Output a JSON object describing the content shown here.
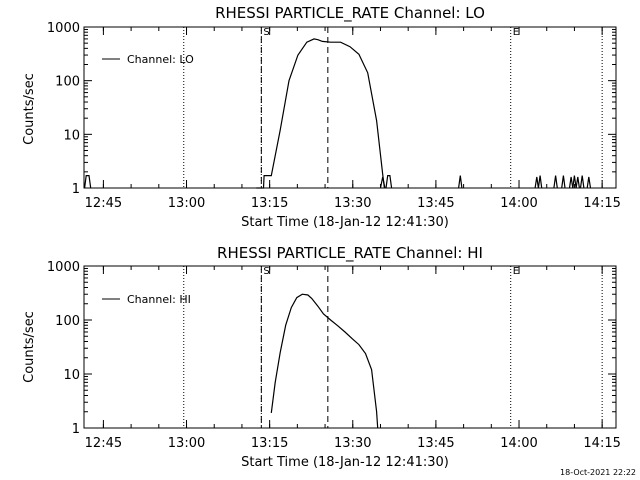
{
  "chart_data": [
    {
      "type": "line",
      "title": "RHESSI PARTICLE_RATE Channel: LO",
      "xlabel": "Start Time (18-Jan-12 12:41:30)",
      "ylabel": "Counts/sec",
      "y_scale": "log",
      "ylim": [
        1,
        1000
      ],
      "xlim_minutes_after_1241": [
        0,
        96
      ],
      "x_ticks": [
        {
          "label": "12:45",
          "minute": 3.5
        },
        {
          "label": "13:00",
          "minute": 18.5
        },
        {
          "label": "13:15",
          "minute": 33.5
        },
        {
          "label": "13:30",
          "minute": 48.5
        },
        {
          "label": "13:45",
          "minute": 63.5
        },
        {
          "label": "14:00",
          "minute": 78.5
        },
        {
          "label": "14:15",
          "minute": 93.5
        }
      ],
      "y_ticks": [
        {
          "label": "1",
          "value": 1
        },
        {
          "label": "10",
          "value": 10
        },
        {
          "label": "100",
          "value": 100
        },
        {
          "label": "1000",
          "value": 1000
        }
      ],
      "legend": {
        "entry": "Channel: LO",
        "placement": "top-left"
      },
      "markers": [
        {
          "label": "S",
          "minute": 32,
          "style": "dashed"
        },
        {
          "label": "",
          "minute": 44,
          "style": "dashed"
        },
        {
          "label": "E",
          "minute": 77,
          "style": "dotted"
        }
      ],
      "dotted_lines_minutes": [
        18,
        32,
        77,
        93.5
      ],
      "series": [
        {
          "name": "Channel: LO",
          "segments": [
            [
              [
                0.1,
                1
              ],
              [
                0.4,
                1.7
              ],
              [
                0.9,
                1.7
              ],
              [
                1.2,
                1
              ]
            ],
            [
              [
                31.1,
                1
              ],
              [
                32.4,
                1
              ],
              [
                32.5,
                1.7
              ],
              [
                33.8,
                1.7
              ],
              [
                35.4,
                12
              ],
              [
                37,
                100
              ],
              [
                38.6,
                300
              ],
              [
                40.2,
                520
              ],
              [
                41.5,
                600
              ],
              [
                42.2,
                580
              ],
              [
                43,
                540
              ],
              [
                44.5,
                520
              ],
              [
                46.3,
                520
              ],
              [
                48,
                430
              ],
              [
                49.6,
                310
              ],
              [
                51.2,
                140
              ],
              [
                52.8,
                18
              ],
              [
                53.9,
                1.8
              ],
              [
                54.2,
                1
              ]
            ],
            [
              [
                53.5,
                1
              ],
              [
                53.9,
                1.6
              ],
              [
                54.3,
                1
              ]
            ],
            [
              [
                54.5,
                1
              ],
              [
                54.8,
                1.7
              ],
              [
                55.2,
                1.7
              ],
              [
                55.5,
                1
              ]
            ],
            [
              [
                67.6,
                1
              ],
              [
                67.9,
                1.7
              ],
              [
                68.2,
                1
              ]
            ],
            [
              [
                81.4,
                1
              ],
              [
                81.7,
                1.6
              ],
              [
                82,
                1
              ]
            ],
            [
              [
                82,
                1
              ],
              [
                82.3,
                1.7
              ],
              [
                82.6,
                1
              ]
            ],
            [
              [
                84.8,
                1
              ],
              [
                85.1,
                1.7
              ],
              [
                85.4,
                1
              ]
            ],
            [
              [
                86.2,
                1
              ],
              [
                86.5,
                1.7
              ],
              [
                86.8,
                1
              ]
            ],
            [
              [
                87.6,
                1
              ],
              [
                87.9,
                1.6
              ],
              [
                88.2,
                1
              ]
            ],
            [
              [
                88.2,
                1
              ],
              [
                88.5,
                1.7
              ],
              [
                88.8,
                1
              ]
            ],
            [
              [
                88.8,
                1
              ],
              [
                89.1,
                1.6
              ],
              [
                89.4,
                1
              ]
            ],
            [
              [
                89.6,
                1
              ],
              [
                89.9,
                1.7
              ],
              [
                90.2,
                1
              ]
            ],
            [
              [
                90.8,
                1
              ],
              [
                91.1,
                1.6
              ],
              [
                91.4,
                1
              ]
            ]
          ]
        }
      ]
    },
    {
      "type": "line",
      "title": "RHESSI PARTICLE_RATE Channel: HI",
      "xlabel": "Start Time (18-Jan-12 12:41:30)",
      "ylabel": "Counts/sec",
      "y_scale": "log",
      "ylim": [
        1,
        1000
      ],
      "xlim_minutes_after_1241": [
        0,
        96
      ],
      "x_ticks": [
        {
          "label": "12:45",
          "minute": 3.5
        },
        {
          "label": "13:00",
          "minute": 18.5
        },
        {
          "label": "13:15",
          "minute": 33.5
        },
        {
          "label": "13:30",
          "minute": 48.5
        },
        {
          "label": "13:45",
          "minute": 63.5
        },
        {
          "label": "14:00",
          "minute": 78.5
        },
        {
          "label": "14:15",
          "minute": 93.5
        }
      ],
      "y_ticks": [
        {
          "label": "1",
          "value": 1
        },
        {
          "label": "10",
          "value": 10
        },
        {
          "label": "100",
          "value": 100
        },
        {
          "label": "1000",
          "value": 1000
        }
      ],
      "legend": {
        "entry": "Channel: HI",
        "placement": "top-left"
      },
      "markers": [
        {
          "label": "S",
          "minute": 32,
          "style": "dashed"
        },
        {
          "label": "",
          "minute": 44,
          "style": "dashed"
        },
        {
          "label": "E",
          "minute": 77,
          "style": "dotted"
        }
      ],
      "dotted_lines_minutes": [
        18,
        32,
        77,
        93.5
      ],
      "series": [
        {
          "name": "Channel: HI",
          "segments": [
            [
              [
                33.8,
                1.9
              ],
              [
                34.5,
                7
              ],
              [
                35.4,
                25
              ],
              [
                36.4,
                80
              ],
              [
                37.4,
                170
              ],
              [
                38.4,
                260
              ],
              [
                39.4,
                300
              ],
              [
                40.4,
                290
              ],
              [
                41.1,
                250
              ],
              [
                42.2,
                180
              ],
              [
                43.2,
                130
              ],
              [
                44.5,
                100
              ],
              [
                45.8,
                78
              ],
              [
                47.1,
                60
              ],
              [
                48.4,
                45
              ],
              [
                49.6,
                35
              ],
              [
                50.8,
                24
              ],
              [
                51.9,
                12
              ],
              [
                52.8,
                2
              ],
              [
                53,
                1
              ]
            ]
          ]
        }
      ]
    }
  ],
  "footer_timestamp": "18-Oct-2021 22:22"
}
